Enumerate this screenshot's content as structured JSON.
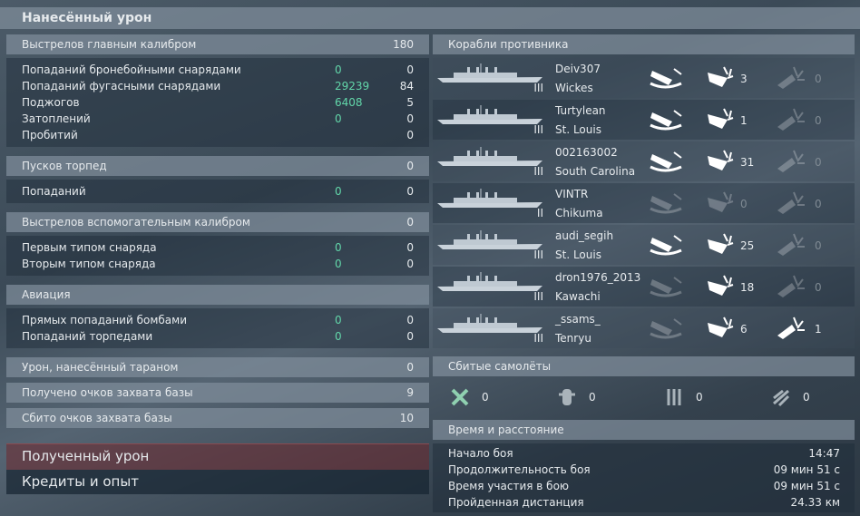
{
  "header": {
    "title": "Нанесённый урон"
  },
  "damage": {
    "sections": [
      {
        "title": "Выстрелов главным калибром",
        "value": 180,
        "rows": [
          {
            "label": "Попаданий бронебойными снарядами",
            "hits": 0,
            "value": 0
          },
          {
            "label": "Попаданий фугасными снарядами",
            "hits": 29239,
            "value": 84
          },
          {
            "label": "Поджогов",
            "hits": 6408,
            "value": 5
          },
          {
            "label": "Затоплений",
            "hits": 0,
            "value": 0
          },
          {
            "label": "Пробитий",
            "value": 0
          }
        ]
      },
      {
        "title": "Пусков торпед",
        "value": 0,
        "rows": [
          {
            "label": "Попаданий",
            "hits": 0,
            "value": 0
          }
        ]
      },
      {
        "title": "Выстрелов вспомогательным калибром",
        "value": 0,
        "rows": [
          {
            "label": "Первым типом снаряда",
            "hits": 0,
            "value": 0
          },
          {
            "label": "Вторым типом снаряда",
            "hits": 0,
            "value": 0
          }
        ]
      },
      {
        "title": "Авиация",
        "rows": [
          {
            "label": "Прямых попаданий бомбами",
            "hits": 0,
            "value": 0
          },
          {
            "label": "Попаданий торпедами",
            "hits": 0,
            "value": 0
          }
        ]
      },
      {
        "title": "Урон, нанесённый тараном",
        "value": 0
      },
      {
        "title": "Получено очков захвата базы",
        "value": 9
      },
      {
        "title": "Сбито очков захвата базы",
        "value": 10
      }
    ]
  },
  "tabs": [
    "Полученный урон",
    "Кредиты и опыт"
  ],
  "enemies": {
    "title": "Корабли противника",
    "ships": [
      {
        "player": "Deiv307",
        "ship": "Wickes",
        "tier": "III",
        "destroyed": true,
        "hits": 3,
        "citadels": 0
      },
      {
        "player": "Turtylean",
        "ship": "St. Louis",
        "tier": "III",
        "destroyed": true,
        "hits": 1,
        "citadels": 0
      },
      {
        "player": "002163002",
        "ship": "South Carolina",
        "tier": "III",
        "destroyed": true,
        "hits": 31,
        "citadels": 0
      },
      {
        "player": "VINTR",
        "ship": "Chikuma",
        "tier": "II",
        "destroyed": false,
        "hits": 0,
        "citadels": 0
      },
      {
        "player": "audi_segih",
        "ship": "St. Louis",
        "tier": "III",
        "destroyed": true,
        "hits": 25,
        "citadels": 0
      },
      {
        "player": "dron1976_2013",
        "ship": "Kawachi",
        "tier": "III",
        "destroyed": false,
        "hits": 18,
        "citadels": 0
      },
      {
        "player": "_ssams_",
        "ship": "Tenryu",
        "tier": "III",
        "destroyed": false,
        "hits": 6,
        "citadels": 1
      }
    ]
  },
  "planes": {
    "title": "Сбитые самолёты",
    "counts": [
      0,
      0,
      0,
      0
    ]
  },
  "time": {
    "title": "Время и расстояние",
    "rows": [
      {
        "label": "Начало боя",
        "value": "14:47"
      },
      {
        "label": "Продолжительность боя",
        "value": "09 мин 51 с"
      },
      {
        "label": "Время участия в бою",
        "value": "09 мин 51 с"
      },
      {
        "label": "Пройденная дистанция",
        "value": "24.33 км"
      }
    ]
  }
}
